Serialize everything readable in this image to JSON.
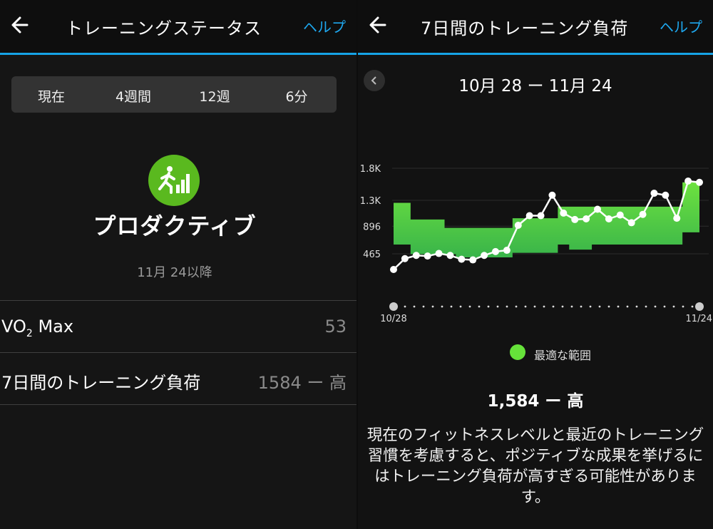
{
  "left": {
    "header": {
      "title": "トレーニングステータス",
      "help": "ヘルプ"
    },
    "tabs": [
      "現在",
      "4週間",
      "12週",
      "6分"
    ],
    "status": {
      "label": "プロダクティブ",
      "since": "11月 24以降",
      "icon": "runner-chart-icon",
      "color": "#5ab91f"
    },
    "rows": [
      {
        "label": "VO₂ Max",
        "value": "53"
      },
      {
        "label": "7日間のトレーニング負荷",
        "value": "1584 ー 高"
      }
    ]
  },
  "right": {
    "header": {
      "title": "7日間のトレーニング負荷",
      "help": "ヘルプ"
    },
    "range": "10月 28 ー 11月 24",
    "legend": "最適な範囲",
    "load_text": "1,584 ー 高",
    "description": "現在のフィットネスレベルと最近のトレーニング習慣を考慮すると、ポジティブな成果を挙げるにはトレーニング負荷が高すぎる可能性があります。"
  },
  "colors": {
    "accent": "#1ea7ee",
    "optimal_band": "#5fd43a",
    "line": "#ffffff"
  },
  "chart_data": {
    "type": "line",
    "y_ticks": [
      "1.8K",
      "1.3K",
      "896",
      "465"
    ],
    "y_tick_values": [
      1800,
      1300,
      896,
      465
    ],
    "ylim": [
      200,
      1850
    ],
    "x_start_label": "10/28",
    "x_end_label": "11/24",
    "n_days": 28,
    "series": [
      {
        "values": [
          220,
          390,
          440,
          430,
          470,
          440,
          380,
          370,
          440,
          500,
          520,
          910,
          1060,
          1060,
          1380,
          1100,
          1000,
          1010,
          1160,
          1010,
          1070,
          950,
          1080,
          1410,
          1380,
          1020,
          1600,
          1580
        ]
      }
    ],
    "optimal_range": {
      "lower": [
        610,
        610,
        460,
        460,
        460,
        460,
        410,
        410,
        410,
        410,
        410,
        480,
        480,
        480,
        480,
        610,
        530,
        530,
        610,
        610,
        610,
        610,
        610,
        610,
        610,
        610,
        800,
        800
      ],
      "upper": [
        1260,
        1260,
        1000,
        1000,
        1000,
        870,
        870,
        870,
        870,
        870,
        870,
        1020,
        1020,
        1020,
        1020,
        1200,
        1200,
        1200,
        1200,
        1200,
        1200,
        1200,
        1200,
        1200,
        1200,
        1200,
        1580,
        1580
      ]
    }
  }
}
